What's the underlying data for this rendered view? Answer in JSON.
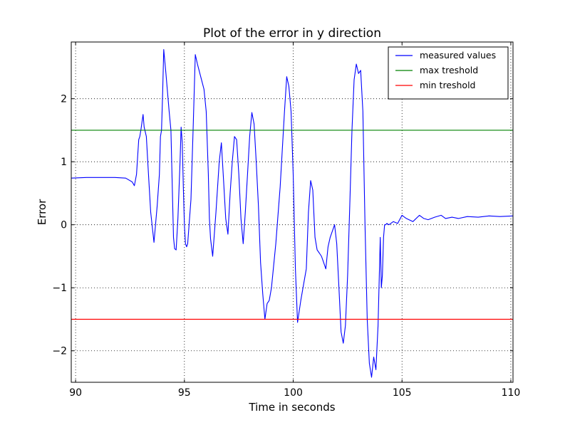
{
  "chart_data": {
    "type": "line",
    "title": "Plot of the error in y direction",
    "xlabel": "Time in seconds",
    "ylabel": "Error",
    "xlim": [
      89.8,
      110.1
    ],
    "ylim": [
      -2.5,
      2.9
    ],
    "xticks": [
      90,
      95,
      100,
      105,
      110
    ],
    "xtick_labels": [
      "90",
      "95",
      "100",
      "105",
      "110"
    ],
    "yticks": [
      -2,
      -1,
      0,
      1,
      2
    ],
    "ytick_labels": [
      "−2",
      "−1",
      "0",
      "1",
      "2"
    ],
    "grid": true,
    "legend_position": "top-right",
    "series": [
      {
        "name": "measured values",
        "color": "#0000ff",
        "kind": "line",
        "x": [
          89.8,
          90.5,
          91.2,
          91.8,
          92.3,
          92.6,
          92.7,
          92.8,
          92.9,
          92.95,
          93.0,
          93.05,
          93.1,
          93.15,
          93.25,
          93.35,
          93.45,
          93.6,
          93.75,
          93.85,
          93.9,
          93.95,
          94.0,
          94.05,
          94.15,
          94.3,
          94.38,
          94.45,
          94.5,
          94.55,
          94.62,
          94.7,
          94.8,
          94.85,
          94.9,
          94.95,
          95.0,
          95.05,
          95.1,
          95.15,
          95.3,
          95.4,
          95.5,
          95.6,
          95.75,
          95.9,
          96.0,
          96.1,
          96.15,
          96.2,
          96.3,
          96.45,
          96.6,
          96.7,
          96.8,
          96.9,
          97.0,
          97.1,
          97.2,
          97.3,
          97.4,
          97.5,
          97.6,
          97.7,
          97.8,
          97.9,
          98.0,
          98.1,
          98.2,
          98.3,
          98.4,
          98.5,
          98.6,
          98.7,
          98.8,
          98.9,
          99.0,
          99.2,
          99.4,
          99.6,
          99.7,
          99.8,
          99.9,
          100.0,
          100.1,
          100.2,
          100.35,
          100.5,
          100.6,
          100.7,
          100.8,
          100.9,
          101.0,
          101.1,
          101.2,
          101.3,
          101.4,
          101.5,
          101.6,
          101.7,
          101.8,
          101.9,
          102.0,
          102.1,
          102.2,
          102.3,
          102.4,
          102.5,
          102.6,
          102.7,
          102.8,
          102.9,
          103.0,
          103.1,
          103.2,
          103.3,
          103.4,
          103.5,
          103.6,
          103.7,
          103.8,
          103.9,
          104.0,
          104.05,
          104.1,
          104.15,
          104.2,
          104.25,
          104.3,
          104.4,
          104.6,
          104.8,
          105.0,
          105.2,
          105.5,
          105.8,
          106.0,
          106.2,
          106.5,
          106.8,
          107.0,
          107.3,
          107.6,
          108.0,
          108.5,
          109.0,
          109.5,
          110.1
        ],
        "y": [
          0.74,
          0.75,
          0.75,
          0.75,
          0.74,
          0.68,
          0.62,
          0.8,
          1.35,
          1.4,
          1.5,
          1.63,
          1.75,
          1.55,
          1.4,
          0.8,
          0.2,
          -0.28,
          0.3,
          0.8,
          1.4,
          1.5,
          2.1,
          2.78,
          2.4,
          1.8,
          1.5,
          0.5,
          -0.2,
          -0.38,
          -0.4,
          0.1,
          1.0,
          1.55,
          1.3,
          0.6,
          0.0,
          -0.3,
          -0.35,
          -0.3,
          0.4,
          1.5,
          2.7,
          2.55,
          2.35,
          2.15,
          1.8,
          0.8,
          0.1,
          -0.22,
          -0.5,
          0.2,
          1.0,
          1.3,
          0.7,
          0.1,
          -0.15,
          0.5,
          1.0,
          1.4,
          1.35,
          0.8,
          0.1,
          -0.3,
          0.2,
          0.8,
          1.4,
          1.78,
          1.6,
          1.0,
          0.3,
          -0.6,
          -1.1,
          -1.5,
          -1.25,
          -1.2,
          -1.0,
          -0.3,
          0.6,
          1.8,
          2.35,
          2.2,
          1.8,
          0.8,
          -0.7,
          -1.55,
          -1.2,
          -0.9,
          -0.7,
          0.2,
          0.7,
          0.55,
          -0.2,
          -0.4,
          -0.45,
          -0.5,
          -0.6,
          -0.7,
          -0.35,
          -0.2,
          -0.1,
          0.0,
          -0.3,
          -1.0,
          -1.7,
          -1.88,
          -1.6,
          -0.8,
          0.3,
          1.5,
          2.3,
          2.55,
          2.4,
          2.45,
          1.8,
          0.0,
          -1.5,
          -2.2,
          -2.42,
          -2.1,
          -2.3,
          -1.6,
          -0.2,
          -1.0,
          -0.8,
          -0.2,
          0.0,
          0.0,
          0.02,
          0.0,
          0.05,
          0.02,
          0.15,
          0.1,
          0.05,
          0.15,
          0.1,
          0.08,
          0.12,
          0.15,
          0.1,
          0.12,
          0.1,
          0.13,
          0.12,
          0.14,
          0.13,
          0.14
        ]
      },
      {
        "name": "max treshold",
        "color": "#008000",
        "kind": "hline",
        "y": 1.5
      },
      {
        "name": "min treshold",
        "color": "#ff0000",
        "kind": "hline",
        "y": -1.5
      }
    ]
  }
}
